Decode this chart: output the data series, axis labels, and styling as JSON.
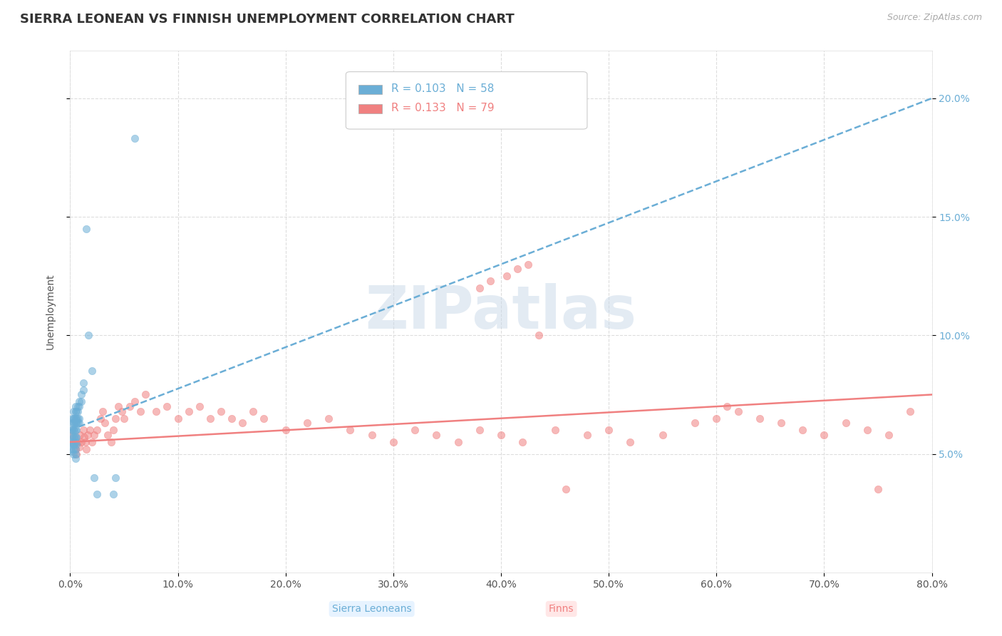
{
  "title": "SIERRA LEONEAN VS FINNISH UNEMPLOYMENT CORRELATION CHART",
  "source": "Source: ZipAtlas.com",
  "ylabel": "Unemployment",
  "xlim": [
    0.0,
    0.8
  ],
  "ylim": [
    0.0,
    0.22
  ],
  "xticks": [
    0.0,
    0.1,
    0.2,
    0.3,
    0.4,
    0.5,
    0.6,
    0.7,
    0.8
  ],
  "xticklabels": [
    "0.0%",
    "10.0%",
    "20.0%",
    "30.0%",
    "40.0%",
    "50.0%",
    "60.0%",
    "70.0%",
    "80.0%"
  ],
  "yticks": [
    0.05,
    0.1,
    0.15,
    0.2
  ],
  "yticklabels": [
    "5.0%",
    "10.0%",
    "15.0%",
    "20.0%"
  ],
  "sierra_color": "#6baed6",
  "finn_color": "#f08080",
  "sierra_R": 0.103,
  "sierra_N": 58,
  "finn_R": 0.133,
  "finn_N": 79,
  "background_color": "#ffffff",
  "grid_color": "#dddddd",
  "watermark_text": "ZIPatlas",
  "title_fontsize": 13,
  "axis_fontsize": 10,
  "legend_fontsize": 11,
  "sierra_trend_x0": 0.0,
  "sierra_trend_y0": 0.06,
  "sierra_trend_x1": 0.8,
  "sierra_trend_y1": 0.2,
  "finn_trend_x0": 0.0,
  "finn_trend_y0": 0.055,
  "finn_trend_x1": 0.8,
  "finn_trend_y1": 0.075,
  "sierra_points_x": [
    0.001,
    0.001,
    0.001,
    0.002,
    0.002,
    0.002,
    0.002,
    0.002,
    0.002,
    0.003,
    0.003,
    0.003,
    0.003,
    0.003,
    0.003,
    0.003,
    0.003,
    0.004,
    0.004,
    0.004,
    0.004,
    0.004,
    0.005,
    0.005,
    0.005,
    0.005,
    0.005,
    0.005,
    0.005,
    0.005,
    0.005,
    0.005,
    0.006,
    0.006,
    0.006,
    0.006,
    0.006,
    0.006,
    0.007,
    0.007,
    0.007,
    0.007,
    0.008,
    0.008,
    0.008,
    0.008,
    0.01,
    0.01,
    0.012,
    0.012,
    0.015,
    0.017,
    0.02,
    0.022,
    0.025,
    0.04,
    0.042,
    0.06
  ],
  "sierra_points_y": [
    0.06,
    0.055,
    0.052,
    0.065,
    0.063,
    0.06,
    0.057,
    0.054,
    0.051,
    0.068,
    0.065,
    0.063,
    0.06,
    0.057,
    0.054,
    0.052,
    0.05,
    0.065,
    0.063,
    0.06,
    0.057,
    0.054,
    0.07,
    0.068,
    0.065,
    0.063,
    0.06,
    0.057,
    0.055,
    0.052,
    0.05,
    0.048,
    0.068,
    0.065,
    0.063,
    0.06,
    0.057,
    0.054,
    0.07,
    0.068,
    0.065,
    0.063,
    0.072,
    0.07,
    0.065,
    0.063,
    0.075,
    0.072,
    0.08,
    0.077,
    0.145,
    0.1,
    0.085,
    0.04,
    0.033,
    0.033,
    0.04,
    0.183
  ],
  "finn_points_x": [
    0.002,
    0.003,
    0.005,
    0.006,
    0.007,
    0.008,
    0.009,
    0.01,
    0.012,
    0.013,
    0.014,
    0.015,
    0.016,
    0.018,
    0.02,
    0.022,
    0.025,
    0.028,
    0.03,
    0.032,
    0.035,
    0.038,
    0.04,
    0.042,
    0.045,
    0.048,
    0.05,
    0.055,
    0.06,
    0.065,
    0.07,
    0.08,
    0.09,
    0.1,
    0.11,
    0.12,
    0.13,
    0.14,
    0.15,
    0.16,
    0.17,
    0.18,
    0.2,
    0.22,
    0.24,
    0.26,
    0.28,
    0.3,
    0.32,
    0.34,
    0.36,
    0.38,
    0.4,
    0.42,
    0.45,
    0.48,
    0.5,
    0.52,
    0.55,
    0.58,
    0.6,
    0.61,
    0.62,
    0.64,
    0.66,
    0.68,
    0.7,
    0.72,
    0.74,
    0.76,
    0.78,
    0.38,
    0.39,
    0.405,
    0.415,
    0.425,
    0.435,
    0.46,
    0.75
  ],
  "finn_points_y": [
    0.058,
    0.055,
    0.052,
    0.05,
    0.055,
    0.053,
    0.058,
    0.055,
    0.06,
    0.057,
    0.055,
    0.052,
    0.058,
    0.06,
    0.055,
    0.058,
    0.06,
    0.065,
    0.068,
    0.063,
    0.058,
    0.055,
    0.06,
    0.065,
    0.07,
    0.068,
    0.065,
    0.07,
    0.072,
    0.068,
    0.075,
    0.068,
    0.07,
    0.065,
    0.068,
    0.07,
    0.065,
    0.068,
    0.065,
    0.063,
    0.068,
    0.065,
    0.06,
    0.063,
    0.065,
    0.06,
    0.058,
    0.055,
    0.06,
    0.058,
    0.055,
    0.06,
    0.058,
    0.055,
    0.06,
    0.058,
    0.06,
    0.055,
    0.058,
    0.063,
    0.065,
    0.07,
    0.068,
    0.065,
    0.063,
    0.06,
    0.058,
    0.063,
    0.06,
    0.058,
    0.068,
    0.12,
    0.123,
    0.125,
    0.128,
    0.13,
    0.1,
    0.035,
    0.035
  ]
}
